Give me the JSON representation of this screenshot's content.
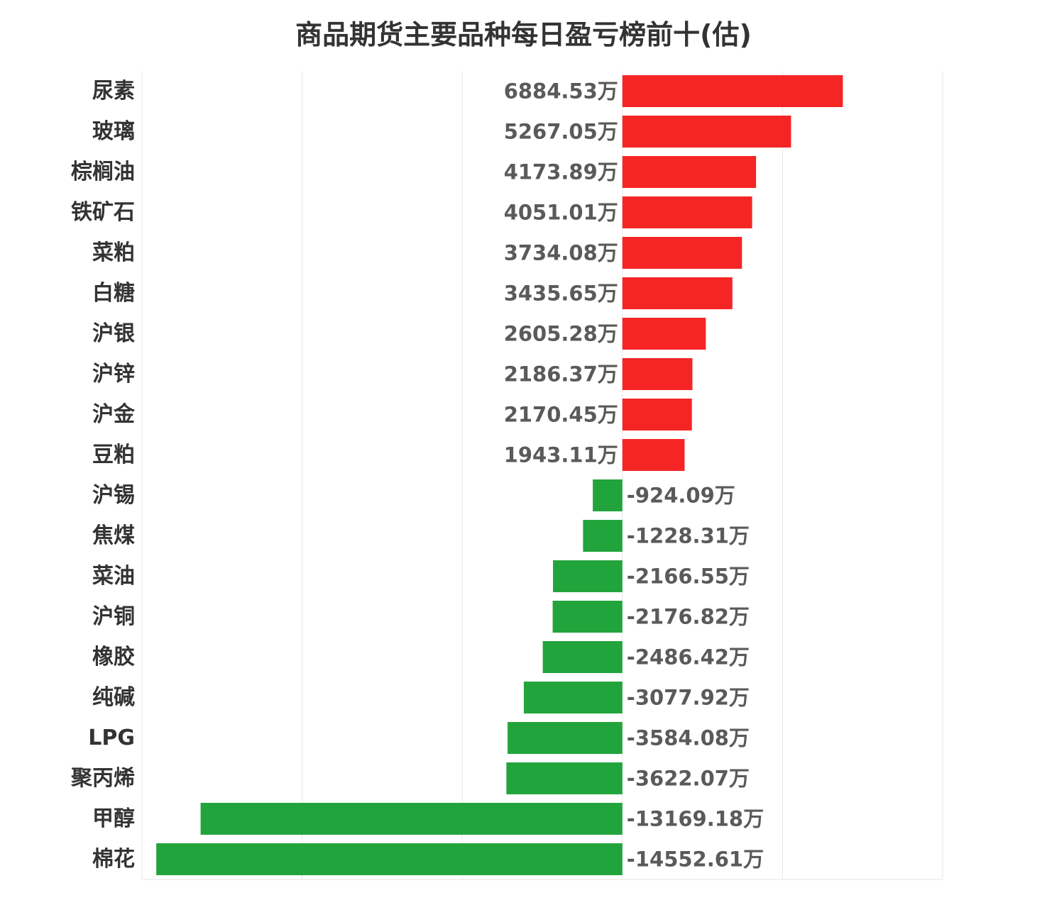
{
  "chart_data": {
    "type": "bar",
    "orientation": "horizontal",
    "title": "商品期货主要品种每日盈亏榜前十(估)",
    "value_suffix": "万",
    "xlim": [
      -15000,
      10000
    ],
    "grid": true,
    "colors": {
      "positive": "#f52526",
      "negative": "#22a43c"
    },
    "categories": [
      "尿素",
      "玻璃",
      "棕榈油",
      "铁矿石",
      "菜粕",
      "白糖",
      "沪银",
      "沪锌",
      "沪金",
      "豆粕",
      "沪锡",
      "焦煤",
      "菜油",
      "沪铜",
      "橡胶",
      "纯碱",
      "LPG",
      "聚丙烯",
      "甲醇",
      "棉花"
    ],
    "values": [
      6884.53,
      5267.05,
      4173.89,
      4051.01,
      3734.08,
      3435.65,
      2605.28,
      2186.37,
      2170.45,
      1943.11,
      -924.09,
      -1228.31,
      -2166.55,
      -2176.82,
      -2486.42,
      -3077.92,
      -3584.08,
      -3622.07,
      -13169.18,
      -14552.61
    ],
    "labels": [
      "6884.53万",
      "5267.05万",
      "4173.89万",
      "4051.01万",
      "3734.08万",
      "3435.65万",
      "2605.28万",
      "2186.37万",
      "2170.45万",
      "1943.11万",
      "-924.09万",
      "-1228.31万",
      "-2166.55万",
      "-2176.82万",
      "-2486.42万",
      "-3077.92万",
      "-3584.08万",
      "-3622.07万",
      "-13169.18万",
      "-14552.61万"
    ]
  }
}
